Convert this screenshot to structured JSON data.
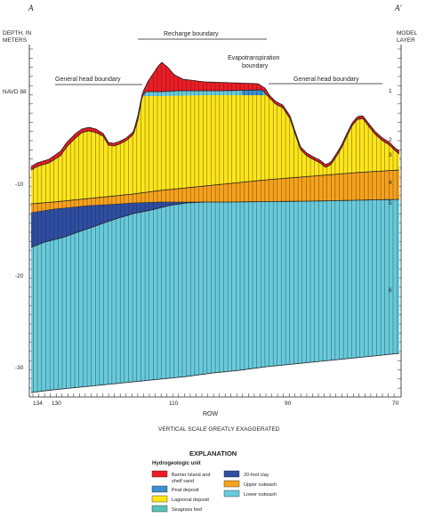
{
  "section": {
    "left_label": "A",
    "right_label": "A′"
  },
  "axes": {
    "left_title": [
      "DEPTH, IN",
      "METERS"
    ],
    "right_title": [
      "MODEL",
      "LAYER"
    ],
    "depth_ticks": [
      {
        "label": "NAVD 88",
        "value": 0
      },
      {
        "label": "-10",
        "value": -10
      },
      {
        "label": "-20",
        "value": -20
      },
      {
        "label": "-30",
        "value": -30
      }
    ],
    "x_title": "ROW",
    "x_ticks": [
      {
        "label": "134",
        "value": 134
      },
      {
        "label": "130",
        "value": 130
      },
      {
        "label": "110",
        "value": 110
      },
      {
        "label": "90",
        "value": 90
      },
      {
        "label": "70",
        "value": 70
      }
    ],
    "scale_note": "VERTICAL SCALE GREATLY EXAGGERATED",
    "layer_labels": [
      {
        "label": "1",
        "depth": -0.5
      },
      {
        "label": "2",
        "depth": -5.2
      },
      {
        "label": "3",
        "depth": -6.6
      },
      {
        "label": "4",
        "depth": -9.6
      },
      {
        "label": "5",
        "depth": -11.6
      },
      {
        "label": "6",
        "depth": -21.4
      }
    ]
  },
  "boundaries": {
    "recharge": "Recharge boundary",
    "general_head_left": "General head boundary",
    "general_head_right": "General head boundary",
    "evapotranspiration": [
      "Evapotranspiration",
      "boundary"
    ]
  },
  "explanation": {
    "title": "EXPLANATION",
    "subtitle": "Hydrogeologic unit",
    "items": [
      {
        "key": "barrier",
        "label": [
          "Barrier Island and",
          "shelf sand"
        ],
        "color": "#ed1c24"
      },
      {
        "key": "peat",
        "label": [
          "Peat deposit"
        ],
        "color": "#3a8fd0"
      },
      {
        "key": "lagoonal",
        "label": [
          "Lagoonal deposit"
        ],
        "color": "#ffe619"
      },
      {
        "key": "seagrass",
        "label": [
          "Seagrass bed"
        ],
        "color": "#5cc1b6"
      },
      {
        "key": "clay",
        "label": [
          "20-foot clay"
        ],
        "color": "#2e4ea4"
      },
      {
        "key": "upper",
        "label": [
          "Upper outwash"
        ],
        "color": "#f7a21b"
      },
      {
        "key": "lower",
        "label": [
          "Lower outwash"
        ],
        "color": "#67cbdc"
      }
    ]
  },
  "colors": {
    "barrier": "#ed1c24",
    "peat": "#3a8fd0",
    "lagoonal": "#ffe619",
    "seagrass": "#5cc1b6",
    "clay": "#2e4ea4",
    "upper": "#f7a21b",
    "lower": "#67cbdc",
    "line": "#231f20"
  }
}
